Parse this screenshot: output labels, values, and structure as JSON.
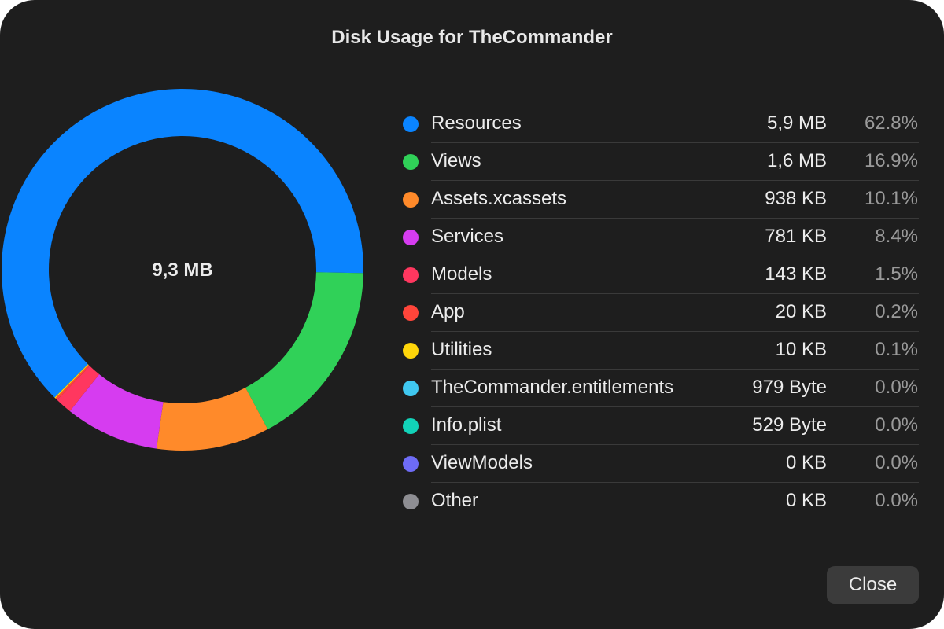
{
  "dialog": {
    "title": "Disk Usage for TheCommander",
    "close_label": "Close"
  },
  "chart_data": {
    "type": "pie",
    "total_label": "9,3 MB",
    "categories": [
      "Resources",
      "Views",
      "Assets.xcassets",
      "Services",
      "Models",
      "App",
      "Utilities",
      "TheCommander.entitlements",
      "Info.plist",
      "ViewModels",
      "Other"
    ],
    "values": [
      62.8,
      16.9,
      10.1,
      8.4,
      1.5,
      0.2,
      0.1,
      0.0,
      0.0,
      0.0,
      0.0
    ],
    "colors": [
      "#0a84ff",
      "#30d158",
      "#ff8a2a",
      "#d63cf0",
      "#ff375f",
      "#ff453a",
      "#ffd60a",
      "#40c8f0",
      "#12d2b8",
      "#6e6cf6",
      "#8e8e93"
    ]
  },
  "legend": {
    "items": [
      {
        "name": "Resources",
        "size": "5,9 MB",
        "percent": "62.8%",
        "color": "#0a84ff"
      },
      {
        "name": "Views",
        "size": "1,6 MB",
        "percent": "16.9%",
        "color": "#30d158"
      },
      {
        "name": "Assets.xcassets",
        "size": "938 KB",
        "percent": "10.1%",
        "color": "#ff8a2a"
      },
      {
        "name": "Services",
        "size": "781 KB",
        "percent": "8.4%",
        "color": "#d63cf0"
      },
      {
        "name": "Models",
        "size": "143 KB",
        "percent": "1.5%",
        "color": "#ff375f"
      },
      {
        "name": "App",
        "size": "20 KB",
        "percent": "0.2%",
        "color": "#ff453a"
      },
      {
        "name": "Utilities",
        "size": "10 KB",
        "percent": "0.1%",
        "color": "#ffd60a"
      },
      {
        "name": "TheCommander.entitlements",
        "size": "979 Byte",
        "percent": "0.0%",
        "color": "#40c8f0"
      },
      {
        "name": "Info.plist",
        "size": "529 Byte",
        "percent": "0.0%",
        "color": "#12d2b8"
      },
      {
        "name": "ViewModels",
        "size": "0 KB",
        "percent": "0.0%",
        "color": "#6e6cf6"
      },
      {
        "name": "Other",
        "size": "0 KB",
        "percent": "0.0%",
        "color": "#8e8e93"
      }
    ]
  }
}
